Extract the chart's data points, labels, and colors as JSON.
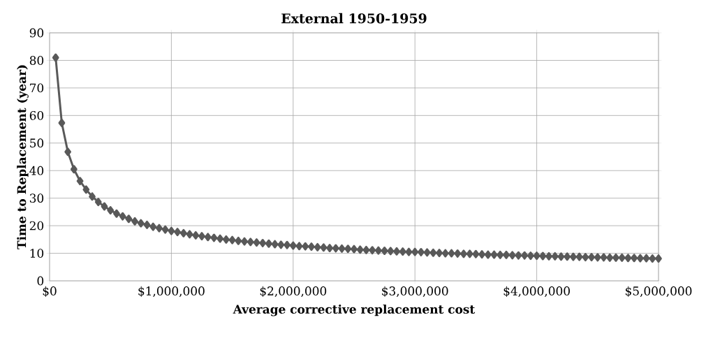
{
  "chart_data": {
    "type": "line",
    "title": "External 1950-1959",
    "xlabel": "Average corrective replacement cost",
    "ylabel": "Time to Replacement (year)",
    "xlim": [
      0,
      5000000
    ],
    "ylim": [
      0,
      90
    ],
    "xticks": [
      {
        "value": 0,
        "label": "$0"
      },
      {
        "value": 1000000,
        "label": "$1,000,000"
      },
      {
        "value": 2000000,
        "label": "$2,000,000"
      },
      {
        "value": 3000000,
        "label": "$3,000,000"
      },
      {
        "value": 4000000,
        "label": "$4,000,000"
      },
      {
        "value": 5000000,
        "label": "$5,000,000"
      }
    ],
    "yticks": [
      0,
      10,
      20,
      30,
      40,
      50,
      60,
      70,
      80,
      90
    ],
    "grid": true,
    "marker": "diamond",
    "line_style": "solid",
    "series": [
      {
        "color": "#595959",
        "x": [
          50000,
          100000,
          150000,
          200000,
          250000,
          300000,
          350000,
          400000,
          450000,
          500000,
          550000,
          600000,
          650000,
          700000,
          750000,
          800000,
          850000,
          900000,
          950000,
          1000000,
          1050000,
          1100000,
          1150000,
          1200000,
          1250000,
          1300000,
          1350000,
          1400000,
          1450000,
          1500000,
          1550000,
          1600000,
          1650000,
          1700000,
          1750000,
          1800000,
          1850000,
          1900000,
          1950000,
          2000000,
          2050000,
          2100000,
          2150000,
          2200000,
          2250000,
          2300000,
          2350000,
          2400000,
          2450000,
          2500000,
          2550000,
          2600000,
          2650000,
          2700000,
          2750000,
          2800000,
          2850000,
          2900000,
          2950000,
          3000000,
          3050000,
          3100000,
          3150000,
          3200000,
          3250000,
          3300000,
          3350000,
          3400000,
          3450000,
          3500000,
          3550000,
          3600000,
          3650000,
          3700000,
          3750000,
          3800000,
          3850000,
          3900000,
          3950000,
          4000000,
          4050000,
          4100000,
          4150000,
          4200000,
          4250000,
          4300000,
          4350000,
          4400000,
          4450000,
          4500000,
          4550000,
          4600000,
          4650000,
          4700000,
          4750000,
          4800000,
          4850000,
          4900000,
          4950000,
          5000000
        ],
        "values": [
          81.0,
          57.3,
          46.8,
          40.5,
          36.2,
          33.1,
          30.6,
          28.6,
          27.0,
          25.6,
          24.4,
          23.4,
          22.5,
          21.6,
          20.9,
          20.3,
          19.6,
          19.1,
          18.6,
          18.1,
          17.7,
          17.3,
          16.9,
          16.5,
          16.2,
          15.9,
          15.6,
          15.3,
          15.0,
          14.8,
          14.5,
          14.3,
          14.1,
          13.9,
          13.7,
          13.5,
          13.3,
          13.1,
          13.0,
          12.8,
          12.6,
          12.5,
          12.4,
          12.2,
          12.1,
          11.9,
          11.8,
          11.7,
          11.6,
          11.5,
          11.3,
          11.2,
          11.1,
          11.0,
          10.9,
          10.8,
          10.7,
          10.6,
          10.5,
          10.5,
          10.4,
          10.3,
          10.2,
          10.1,
          10.0,
          10.0,
          9.9,
          9.8,
          9.8,
          9.7,
          9.6,
          9.5,
          9.5,
          9.4,
          9.4,
          9.3,
          9.2,
          9.2,
          9.1,
          9.1,
          9.0,
          8.9,
          8.9,
          8.8,
          8.8,
          8.7,
          8.7,
          8.6,
          8.6,
          8.5,
          8.5,
          8.4,
          8.4,
          8.4,
          8.3,
          8.3,
          8.2,
          8.2,
          8.1,
          8.1
        ]
      }
    ]
  }
}
